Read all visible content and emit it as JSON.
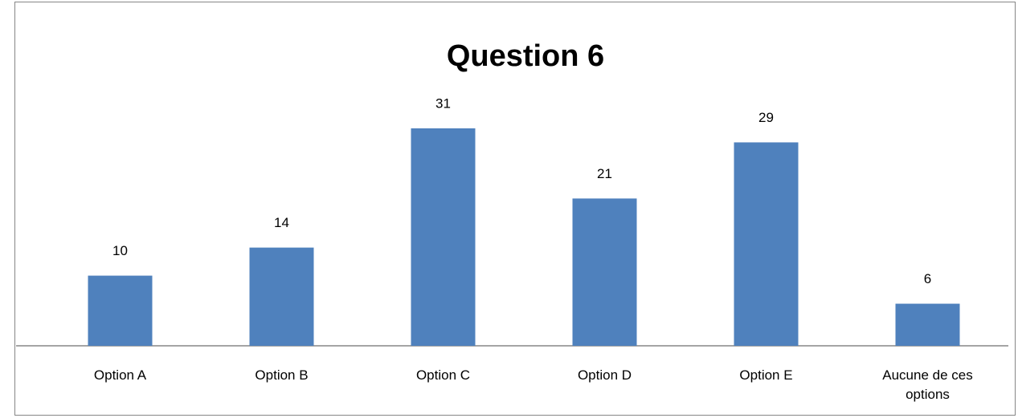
{
  "chart_data": {
    "type": "bar",
    "title": "Question 6",
    "categories": [
      "Option A",
      "Option B",
      "Option C",
      "Option D",
      "Option E",
      "Aucune de ces options"
    ],
    "values": [
      10,
      14,
      31,
      21,
      29,
      6
    ],
    "color": "#4f81bd",
    "ylim": [
      0,
      35
    ]
  }
}
